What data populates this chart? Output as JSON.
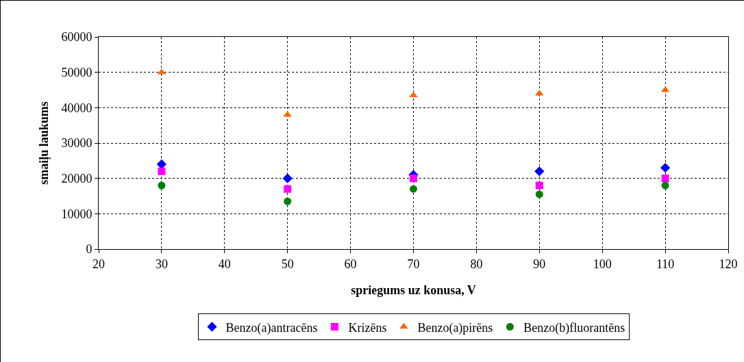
{
  "chart_data": {
    "type": "scatter",
    "xlabel": "spriegums uz konusa, V",
    "ylabel": "smaiļu laukums",
    "x": [
      30,
      50,
      70,
      90,
      110
    ],
    "series": [
      {
        "name": "Benzo(a)antracēns",
        "color": "#0000ff",
        "marker": "diamond",
        "values": [
          24000,
          20000,
          21000,
          22000,
          23000
        ]
      },
      {
        "name": "Krizēns",
        "color": "#ff00ff",
        "marker": "square",
        "values": [
          22000,
          17000,
          20000,
          18000,
          20000
        ]
      },
      {
        "name": "Benzo(a)pirēns",
        "color": "#ff6600",
        "marker": "triangle",
        "values": [
          50000,
          38000,
          43500,
          44000,
          45000
        ]
      },
      {
        "name": "Benzo(b)fluorantēns",
        "color": "#008000",
        "marker": "circle",
        "values": [
          18000,
          13500,
          17000,
          15500,
          18000
        ]
      }
    ],
    "xlim": [
      20,
      120
    ],
    "xticks": [
      20,
      30,
      40,
      50,
      60,
      70,
      80,
      90,
      100,
      110,
      120
    ],
    "ylim": [
      0,
      60000
    ],
    "yticks": [
      0,
      10000,
      20000,
      30000,
      40000,
      50000,
      60000
    ],
    "grid": true,
    "legend": "bottom"
  }
}
